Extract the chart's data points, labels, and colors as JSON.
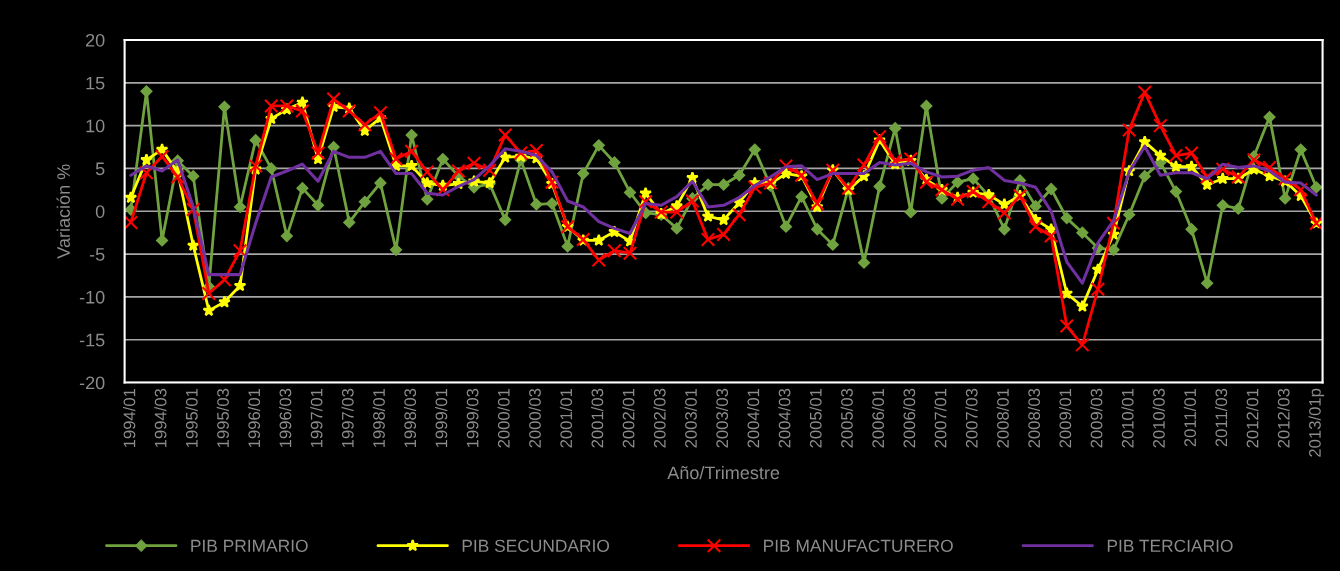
{
  "chart_data": {
    "type": "line",
    "xlabel": "Año/Trimestre",
    "ylabel": "Variación %",
    "categories": [
      "1994/01",
      null,
      "1994/03",
      null,
      "1995/01",
      null,
      "1995/03",
      null,
      "1996/01",
      null,
      "1996/03",
      null,
      "1997/01",
      null,
      "1997/03",
      null,
      "1998/01",
      null,
      "1998/03",
      null,
      "1999/01",
      null,
      "1999/03",
      null,
      "2000/01",
      null,
      "2000/03",
      null,
      "2001/01",
      null,
      "2001/03",
      null,
      "2002/01",
      null,
      "2002/03",
      null,
      "2003/01",
      null,
      "2003/03",
      null,
      "2004/01",
      null,
      "2004/03",
      null,
      "2005/01",
      null,
      "2005/03",
      null,
      "2006/01",
      null,
      "2006/03",
      null,
      "2007/01",
      null,
      "2007/03",
      null,
      "2008/01",
      null,
      "2008/03",
      null,
      "2009/01",
      null,
      "2009/03",
      null,
      "2010/01",
      null,
      "2010/03",
      null,
      "2011/01",
      null,
      "2011/03",
      null,
      "2012/01",
      null,
      "2012/03",
      null,
      "2013/01p"
    ],
    "series": [
      {
        "name": "PIB PRIMARIO",
        "color": "#70a33f",
        "marker": "diamond",
        "values": [
          0.2,
          14.0,
          -3.4,
          5.9,
          4.1,
          -8.8,
          12.2,
          0.5,
          8.3,
          5.0,
          -2.9,
          2.7,
          0.7,
          7.5,
          -1.3,
          1.1,
          3.3,
          -4.5,
          8.9,
          1.4,
          6.1,
          4.1,
          2.8,
          3.2,
          -1.0,
          6.0,
          0.8,
          0.9,
          -4.1,
          4.4,
          7.7,
          5.7,
          2.2,
          -0.2,
          -0.4,
          -2.0,
          1.5,
          3.1,
          3.1,
          4.2,
          7.2,
          3.0,
          -1.8,
          1.7,
          -2.1,
          -3.9,
          2.7,
          -6.0,
          2.9,
          9.7,
          -0.1,
          12.3,
          1.5,
          3.4,
          3.8,
          1.8,
          -2.1,
          3.6,
          0.6,
          2.6,
          -0.8,
          -2.5,
          -4.3,
          -4.5,
          -0.4,
          4.1,
          5.7,
          2.3,
          -2.1,
          -8.4,
          0.7,
          0.3,
          6.4,
          11.0,
          1.5,
          7.2,
          2.8
        ]
      },
      {
        "name": "PIB SECUNDARIO",
        "color": "#ffff00",
        "marker": "star",
        "values": [
          1.6,
          6.0,
          7.2,
          4.6,
          -4.0,
          -11.6,
          -10.6,
          -8.7,
          4.9,
          10.8,
          11.9,
          12.7,
          6.1,
          12.2,
          12.0,
          9.4,
          10.9,
          5.3,
          5.3,
          3.3,
          3.0,
          3.2,
          3.5,
          3.3,
          6.3,
          6.4,
          6.2,
          3.2,
          -1.8,
          -3.4,
          -3.4,
          -2.4,
          -3.5,
          2.1,
          -0.3,
          0.6,
          3.9,
          -0.6,
          -1.0,
          1.0,
          3.3,
          3.2,
          4.4,
          4.1,
          0.5,
          4.8,
          2.5,
          4.1,
          8.3,
          5.5,
          5.9,
          3.7,
          2.5,
          1.6,
          2.2,
          1.9,
          0.8,
          1.8,
          -1.0,
          -2.1,
          -9.6,
          -11.1,
          -6.8,
          -2.7,
          4.7,
          8.1,
          6.5,
          5.2,
          5.2,
          3.1,
          3.8,
          3.8,
          4.9,
          4.1,
          3.5,
          1.8,
          -1.4
        ]
      },
      {
        "name": "PIB MANUFACTURERO",
        "color": "#ff0000",
        "marker": "cross",
        "values": [
          -1.3,
          4.5,
          6.4,
          4.0,
          0.2,
          -9.6,
          -8.0,
          -4.6,
          5.3,
          12.3,
          12.3,
          11.7,
          6.8,
          13.1,
          11.7,
          10.1,
          11.5,
          6.1,
          7.0,
          4.6,
          2.5,
          4.7,
          5.6,
          4.8,
          8.9,
          6.8,
          7.1,
          3.4,
          -1.8,
          -3.3,
          -5.7,
          -4.6,
          -4.9,
          1.1,
          -0.1,
          -0.1,
          1.2,
          -3.3,
          -2.7,
          -0.4,
          2.8,
          3.3,
          5.3,
          4.2,
          0.9,
          4.8,
          2.7,
          5.4,
          8.7,
          5.9,
          6.1,
          3.4,
          2.5,
          1.4,
          2.3,
          1.1,
          -0.2,
          1.8,
          -1.8,
          -2.9,
          -13.4,
          -15.6,
          -9.1,
          -1.4,
          9.5,
          13.9,
          10.0,
          6.5,
          6.8,
          4.0,
          4.9,
          4.0,
          6.0,
          5.1,
          3.8,
          2.5,
          -1.4
        ]
      },
      {
        "name": "PIB TERCIARIO",
        "color": "#7030a0",
        "marker": "none",
        "values": [
          4.2,
          5.3,
          4.7,
          6.0,
          0.5,
          -7.4,
          -7.4,
          -7.4,
          -1.4,
          4.0,
          4.7,
          5.5,
          3.5,
          7.0,
          6.3,
          6.3,
          7.0,
          4.4,
          4.4,
          2.1,
          1.9,
          2.9,
          3.7,
          5.3,
          7.3,
          7.0,
          6.5,
          4.6,
          1.2,
          0.5,
          -1.2,
          -2.0,
          -2.6,
          0.9,
          0.7,
          1.7,
          3.5,
          0.5,
          0.7,
          1.6,
          3.0,
          4.0,
          5.2,
          5.3,
          3.7,
          4.4,
          4.4,
          4.4,
          5.7,
          5.4,
          5.6,
          4.6,
          4.0,
          4.1,
          4.8,
          5.1,
          3.6,
          3.3,
          2.8,
          0.0,
          -5.9,
          -8.4,
          -3.7,
          -1.1,
          4.6,
          7.6,
          4.2,
          4.5,
          4.5,
          3.8,
          5.5,
          5.1,
          5.3,
          4.7,
          3.4,
          3.3,
          1.9
        ]
      }
    ],
    "ylim": [
      -20,
      20
    ],
    "yticks": [
      -20,
      -15,
      -10,
      -5,
      0,
      5,
      10,
      15,
      20
    ],
    "grid": "y",
    "legend": "bottom"
  }
}
